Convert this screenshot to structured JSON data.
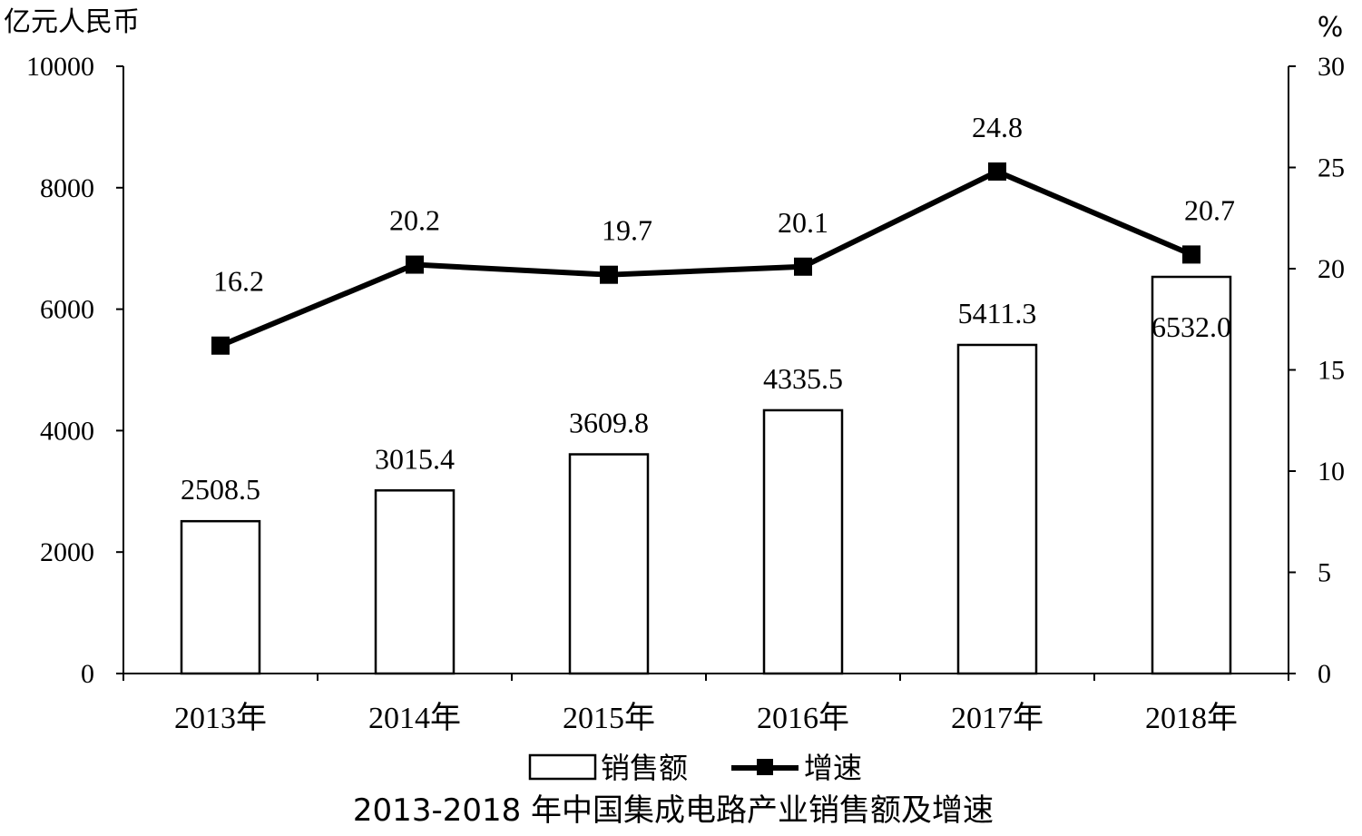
{
  "chart_data": {
    "type": "bar+line",
    "title": "2013-2018 年中国集成电路产业销售额及增速",
    "categories": [
      "2013年",
      "2014年",
      "2015年",
      "2016年",
      "2017年",
      "2018年"
    ],
    "y_left": {
      "unit_label": "亿元人民币",
      "range": [
        0,
        10000
      ],
      "ticks": [
        0,
        2000,
        4000,
        6000,
        8000,
        10000
      ]
    },
    "y_right": {
      "unit_label": "%",
      "range": [
        0,
        30
      ],
      "ticks": [
        0,
        5,
        10,
        15,
        20,
        25,
        30
      ]
    },
    "series": [
      {
        "name": "销售额",
        "type": "bar",
        "axis": "left",
        "values": [
          2508.5,
          3015.4,
          3609.8,
          4335.5,
          5411.3,
          6532.0
        ],
        "labels": [
          "2508.5",
          "3015.4",
          "3609.8",
          "4335.5",
          "5411.3",
          "6532.0"
        ]
      },
      {
        "name": "增速",
        "type": "line",
        "axis": "right",
        "values": [
          16.2,
          20.2,
          19.7,
          20.1,
          24.8,
          20.7
        ],
        "labels": [
          "16.2",
          "20.2",
          "19.7",
          "20.1",
          "24.8",
          "20.7"
        ]
      }
    ],
    "legend_position": "bottom",
    "grid": false
  }
}
